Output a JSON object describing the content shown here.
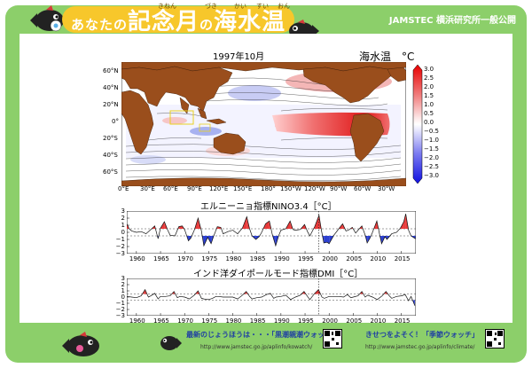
{
  "header": {
    "title_parts": [
      "あなたの",
      "記念月",
      "の",
      "海水温"
    ],
    "ruby": [
      "きねん",
      "づき",
      "かい",
      "すい",
      "おん"
    ],
    "org": "JAMSTEC 横浜研究所一般公開"
  },
  "map": {
    "title": "1997年10月",
    "colorbar_title": "海水温　°C",
    "lat_labels": [
      "60°N",
      "40°N",
      "20°N",
      "0°",
      "20°S",
      "40°S",
      "60°S"
    ],
    "lon_labels": [
      "0°E",
      "30°E",
      "60°E",
      "90°E",
      "120°E",
      "150°E",
      "180°",
      "150°W",
      "120°W",
      "90°W",
      "60°W",
      "30°W"
    ],
    "colorbar_labels": [
      "3.0",
      "2.5",
      "2.0",
      "1.5",
      "1.0",
      "0.5",
      "0.0",
      "−0.5",
      "−1.0",
      "−1.5",
      "−2.0",
      "−2.5",
      "−3.0"
    ],
    "colorbar_range": [
      -3.0,
      3.0
    ]
  },
  "chart_data": [
    {
      "type": "line",
      "title": "エルニーニョ指標NINO3.4［°C］",
      "ylim": [
        -3,
        3
      ],
      "yticks": [
        "3",
        "2",
        "1",
        "0",
        "−1",
        "−2",
        "−3"
      ],
      "xticks": [
        "1960",
        "1965",
        "1970",
        "1975",
        "1980",
        "1985",
        "1990",
        "1995",
        "2000",
        "2005",
        "2010",
        "2015"
      ],
      "x_range": [
        1958,
        2018
      ],
      "threshold": 0.5,
      "marker_year": 1997.8,
      "series": [
        {
          "x": [
            1958,
            1958.5,
            1959,
            1960,
            1961,
            1962,
            1963,
            1963.8,
            1964.5,
            1965,
            1965.8,
            1966.5,
            1967,
            1968,
            1968.8,
            1969.5,
            1970,
            1970.8,
            1971.3,
            1972,
            1972.8,
            1973.5,
            1974,
            1974.8,
            1975.5,
            1976,
            1976.8,
            1977.5,
            1978,
            1979,
            1980,
            1981,
            1982,
            1982.9,
            1983.5,
            1984,
            1984.8,
            1985.5,
            1986,
            1986.8,
            1987.6,
            1988.2,
            1988.9,
            1989.5,
            1990,
            1991,
            1991.9,
            1992.5,
            1993,
            1994,
            1994.9,
            1995.5,
            1996,
            1997,
            1997.9,
            1998.4,
            1998.9,
            1999.6,
            2000,
            2001,
            2002,
            2002.8,
            2003.5,
            2004,
            2004.8,
            2005.5,
            2006,
            2006.8,
            2007.5,
            2007.9,
            2008.5,
            2009,
            2009.9,
            2010.5,
            2010.9,
            2011.6,
            2012,
            2013,
            2014,
            2014.8,
            2015.5,
            2015.9,
            2016.5,
            2017,
            2017.9
          ],
          "values": [
            1.2,
            0.5,
            0.2,
            0.0,
            0.1,
            -0.2,
            0.4,
            0.9,
            -0.9,
            0.6,
            1.5,
            0.3,
            -0.4,
            -0.5,
            0.8,
            0.9,
            0.4,
            -1.2,
            -0.8,
            0.3,
            2.0,
            0.2,
            -1.9,
            -0.7,
            -1.6,
            -0.6,
            0.8,
            0.7,
            -0.2,
            0.1,
            0.3,
            -0.2,
            0.6,
            2.2,
            0.5,
            -0.5,
            -1.0,
            -0.6,
            0.0,
            1.2,
            1.6,
            -0.3,
            -1.9,
            -0.5,
            0.3,
            0.5,
            1.6,
            0.4,
            0.3,
            0.4,
            1.1,
            0.1,
            -0.5,
            0.8,
            2.4,
            0.3,
            -1.5,
            -1.4,
            -1.6,
            -0.4,
            0.5,
            1.2,
            0.2,
            0.3,
            0.7,
            -0.1,
            0.3,
            0.9,
            -0.4,
            -1.5,
            -0.8,
            0.0,
            1.6,
            -0.4,
            -1.6,
            -0.6,
            -1.0,
            -0.2,
            0.0,
            0.6,
            1.5,
            2.6,
            0.3,
            -0.5,
            -0.9
          ]
        }
      ]
    },
    {
      "type": "line",
      "title": "インド洋ダイポールモード指標DMI［°C］",
      "ylim": [
        -3,
        3
      ],
      "yticks": [
        "3",
        "2",
        "1",
        "0",
        "−1",
        "−2",
        "−3"
      ],
      "xticks": [
        "1960",
        "1965",
        "1970",
        "1975",
        "1980",
        "1985",
        "1990",
        "1995",
        "2000",
        "2005",
        "2010",
        "2015"
      ],
      "x_range": [
        1958,
        2018
      ],
      "threshold": 0.5,
      "marker_year": 1997.8,
      "series": [
        {
          "x": [
            1958,
            1959,
            1960,
            1961,
            1961.8,
            1962.5,
            1963,
            1963.8,
            1964.5,
            1965,
            1966,
            1967,
            1967.8,
            1968.5,
            1969,
            1970,
            1971,
            1972,
            1972.8,
            1973.5,
            1974,
            1975,
            1975.8,
            1976.5,
            1977,
            1978,
            1979,
            1980,
            1981,
            1982,
            1982.8,
            1983.5,
            1984,
            1985,
            1986,
            1987,
            1987.8,
            1988.5,
            1989,
            1990,
            1991,
            1992,
            1993,
            1994,
            1994.8,
            1995.5,
            1996,
            1997,
            1997.8,
            1998.5,
            1999,
            2000,
            2001,
            2002,
            2003,
            2003.8,
            2004.5,
            2005,
            2006,
            2006.8,
            2007.5,
            2008,
            2009,
            2010,
            2011,
            2011.8,
            2012.5,
            2013,
            2014,
            2015,
            2015.8,
            2016.5,
            2017,
            2017.8
          ],
          "values": [
            0.1,
            0.0,
            -0.1,
            0.2,
            1.2,
            0.0,
            0.2,
            0.6,
            -0.3,
            0.1,
            0.1,
            0.2,
            0.9,
            -0.1,
            0.1,
            0.0,
            -0.3,
            0.3,
            1.0,
            -0.2,
            -0.3,
            -0.4,
            -0.2,
            0.1,
            0.1,
            0.0,
            0.0,
            0.0,
            -0.3,
            0.3,
            0.9,
            0.1,
            -0.3,
            -0.1,
            0.0,
            0.4,
            0.6,
            -0.2,
            0.0,
            0.1,
            0.3,
            -0.4,
            0.0,
            0.3,
            0.9,
            0.1,
            -0.4,
            0.6,
            1.2,
            0.0,
            -0.2,
            0.1,
            0.1,
            0.1,
            0.0,
            0.4,
            -0.1,
            0.0,
            0.2,
            0.9,
            0.0,
            0.3,
            0.0,
            -0.4,
            0.2,
            0.9,
            0.2,
            -0.2,
            0.1,
            0.2,
            0.4,
            -0.6,
            0.1,
            -1.4
          ]
        }
      ]
    }
  ],
  "footer": {
    "left_text": "最新のじょうほうは・・・「黒潮親潮ウォッチ」",
    "left_url": "http://www.jamstec.go.jp/aplinfo/kowatch/",
    "right_text": "きせつをよそく！「季節ウォッチ」",
    "right_url": "http://www.jamstec.go.jp/aplinfo/climate/"
  },
  "colors": {
    "frame_green": "#8ccf6a",
    "title_yellow": "#f7c72b",
    "land_brown": "#9a4e1c",
    "positive_red": "#e83a3a",
    "negative_blue": "#2c3fd1",
    "link_blue": "#1f3fa3"
  }
}
